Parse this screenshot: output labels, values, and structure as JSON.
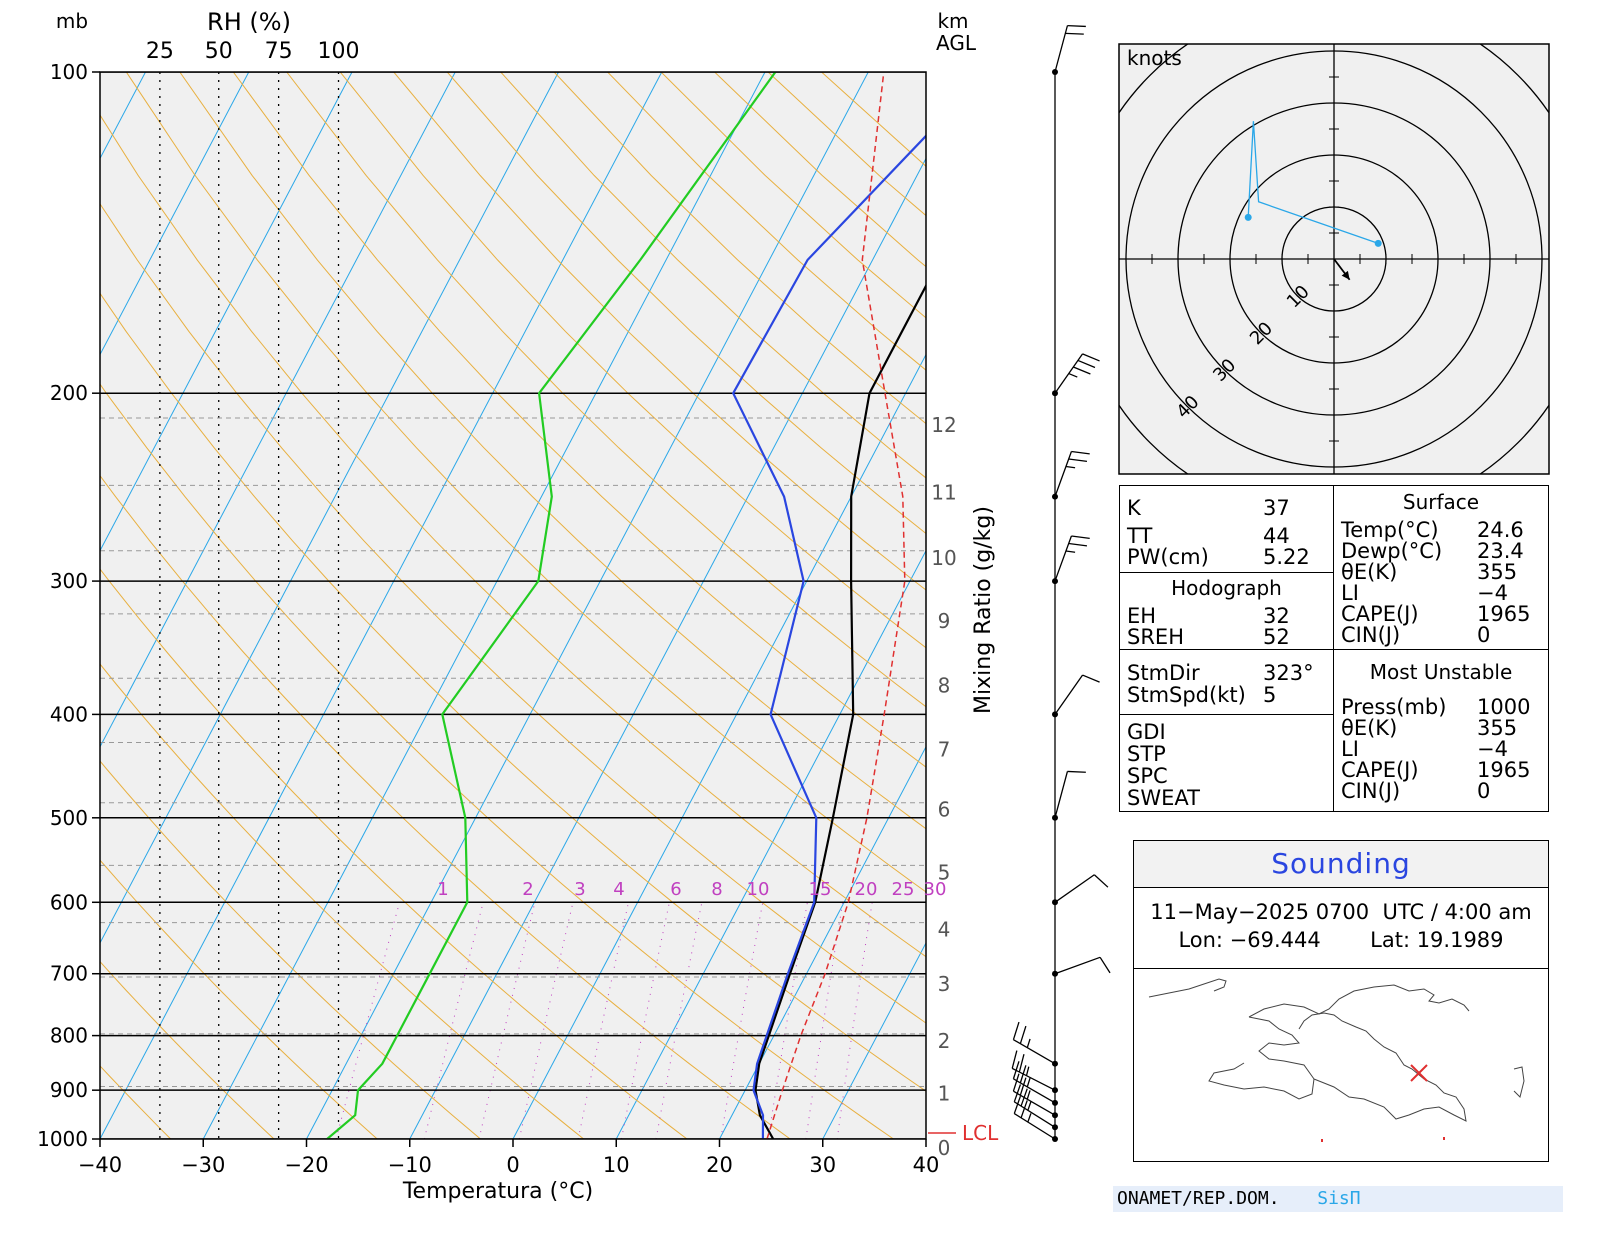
{
  "chart_data": [
    {
      "type": "line",
      "name": "skew-t",
      "ylabel_left": "mb",
      "rh_label": "RH (%)",
      "rh_ticks": [
        "25",
        "50",
        "75",
        "100"
      ],
      "km_label": "km",
      "agl_label": "AGL",
      "xlabel": "Temperatura (°C)",
      "mixing_ratio_label": "Mixing Ratio (g/kg)",
      "lcl_label": "LCL",
      "pressure_ticks": [
        100,
        200,
        300,
        400,
        500,
        600,
        700,
        800,
        900,
        1000
      ],
      "temperature_ticks": [
        -40,
        -30,
        -20,
        -10,
        0,
        10,
        20,
        30,
        40
      ],
      "xlim": [
        -40,
        40
      ],
      "ylim": [
        1000,
        100
      ],
      "height_ticks_km": [
        0,
        1,
        2,
        3,
        4,
        5,
        6,
        7,
        8,
        9,
        10,
        11,
        12
      ],
      "mixing_ratio_ticks": [
        "1",
        "2",
        "3",
        "4",
        "6",
        "8",
        "10",
        "15",
        "20",
        "25",
        "30"
      ],
      "series": [
        {
          "key": "temperature",
          "color": "#000000",
          "points": [
            [
              1000,
              25.2
            ],
            [
              950,
              22.7
            ],
            [
              900,
              21.0
            ],
            [
              850,
              20.0
            ],
            [
              800,
              19.5
            ],
            [
              700,
              18.4
            ],
            [
              600,
              17.2
            ],
            [
              500,
              14.6
            ],
            [
              400,
              11.3
            ],
            [
              300,
              4.3
            ],
            [
              250,
              0.0
            ],
            [
              200,
              -3.5
            ],
            [
              150,
              -3.5
            ],
            [
              100,
              -4.0
            ]
          ]
        },
        {
          "key": "dewpoint",
          "color": "#2a46e0",
          "points": [
            [
              1000,
              24.2
            ],
            [
              950,
              23.0
            ],
            [
              900,
              20.8
            ],
            [
              850,
              19.8
            ],
            [
              800,
              19.3
            ],
            [
              700,
              18.2
            ],
            [
              600,
              17.1
            ],
            [
              500,
              13.0
            ],
            [
              400,
              3.3
            ],
            [
              300,
              -0.3
            ],
            [
              250,
              -6.5
            ],
            [
              200,
              -16.7
            ],
            [
              150,
              -16.3
            ],
            [
              100,
              -8.5
            ]
          ]
        },
        {
          "key": "parcel",
          "color": "#e03030",
          "dashed": true,
          "points": [
            [
              1000,
              24.6
            ],
            [
              900,
              23.6
            ],
            [
              800,
              22.6
            ],
            [
              700,
              21.8
            ],
            [
              600,
              20.4
            ],
            [
              500,
              17.9
            ],
            [
              400,
              14.3
            ],
            [
              300,
              9.5
            ],
            [
              250,
              5.0
            ],
            [
              200,
              -2.0
            ],
            [
              150,
              -11.0
            ],
            [
              100,
              -18.5
            ]
          ]
        },
        {
          "key": "rh",
          "color": "#22cc22",
          "points": [
            [
              1000,
              -18.0
            ],
            [
              950,
              -16.5
            ],
            [
              900,
              -17.5
            ],
            [
              850,
              -16.5
            ],
            [
              800,
              -16.5
            ],
            [
              700,
              -16.5
            ],
            [
              600,
              -16.5
            ],
            [
              500,
              -21.0
            ],
            [
              400,
              -28.5
            ],
            [
              300,
              -26.0
            ],
            [
              250,
              -29.0
            ],
            [
              200,
              -35.5
            ],
            [
              150,
              -32.5
            ],
            [
              100,
              -29.0
            ]
          ]
        }
      ]
    },
    {
      "type": "scatter",
      "name": "hodograph",
      "unit_label": "knots",
      "ring_labels": [
        "10",
        "20",
        "30",
        "40"
      ],
      "points_knots": [
        [
          8.5,
          3.0
        ],
        [
          -15.5,
          26.5
        ],
        [
          -16.5,
          8.0
        ]
      ],
      "storm_motion": {
        "dir_deg": 323,
        "spd_kt": 5
      }
    }
  ],
  "indices": {
    "k_label": "K",
    "k": "37",
    "tt_label": "TT",
    "tt": "44",
    "pw_label": "PW(cm)",
    "pw": "5.22",
    "hodograph_title": "Hodograph",
    "eh_label": "EH",
    "eh": "32",
    "sreh_label": "SREH",
    "sreh": "52",
    "stmdir_label": "StmDir",
    "stmdir": "323°",
    "stmspd_label": "StmSpd(kt)",
    "stmspd": "5",
    "gdi_label": "GDI",
    "stp_label": "STP",
    "spc_label": "SPC",
    "sweat_label": "SWEAT",
    "surface_title": "Surface",
    "temp_label": "Temp(°C)",
    "temp": "24.6",
    "dewp_label": "Dewp(°C)",
    "dewp": "23.4",
    "thetae_label": "θE(K)",
    "thetae": "355",
    "li_label": "LI",
    "li": "−4",
    "cape_label": "CAPE(J)",
    "cape": "1965",
    "cin_label": "CIN(J)",
    "cin": "0",
    "mu_title": "Most Unstable",
    "mu_press_label": "Press(mb)",
    "mu_press": "1000",
    "mu_thetae_label": "θE(K)",
    "mu_thetae": "355",
    "mu_li_label": "LI",
    "mu_li": "−4",
    "mu_cape_label": "CAPE(J)",
    "mu_cape": "1965",
    "mu_cin_label": "CIN(J)",
    "mu_cin": "0"
  },
  "sounding": {
    "title": "Sounding",
    "datetime": "11−May−2025 0700  UTC / 4:00 am",
    "lon": "Lon: −69.444",
    "lat": "Lat: 19.1989"
  },
  "footer": {
    "org": "ONAMET/REP.DOM.",
    "brand": "SisΠ"
  },
  "colors": {
    "temperature": "#000000",
    "dewpoint": "#2a46e0",
    "parcel": "#e03030",
    "rh": "#22cc22",
    "isotherm": "#2aa7e8",
    "dry_adiabat": "#e8b040",
    "mixing_ratio": "#c040c0",
    "hodo_line": "#2aa7e8"
  },
  "winds": [
    {
      "p": 1000,
      "dir": 302,
      "spd": 25
    },
    {
      "p": 975,
      "dir": 302,
      "spd": 25
    },
    {
      "p": 950,
      "dir": 300,
      "spd": 25
    },
    {
      "p": 925,
      "dir": 300,
      "spd": 25
    },
    {
      "p": 900,
      "dir": 297,
      "spd": 25
    },
    {
      "p": 850,
      "dir": 300,
      "spd": 25
    },
    {
      "p": 700,
      "dir": 70,
      "spd": 10
    },
    {
      "p": 600,
      "dir": 55,
      "spd": 10
    },
    {
      "p": 500,
      "dir": 15,
      "spd": 10
    },
    {
      "p": 400,
      "dir": 35,
      "spd": 10
    },
    {
      "p": 300,
      "dir": 20,
      "spd": 25
    },
    {
      "p": 250,
      "dir": 20,
      "spd": 25
    },
    {
      "p": 200,
      "dir": 35,
      "spd": 35
    },
    {
      "p": 100,
      "dir": 15,
      "spd": 20
    }
  ]
}
